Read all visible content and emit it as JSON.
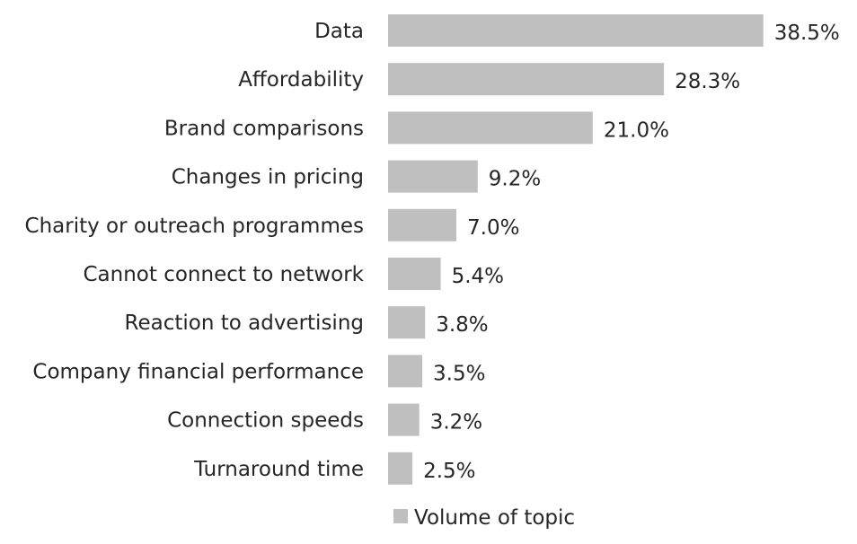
{
  "chart_data": {
    "type": "bar",
    "orientation": "horizontal",
    "categories": [
      "Data",
      "Affordability",
      "Brand comparisons",
      "Changes in pricing",
      "Charity or outreach programmes",
      "Cannot connect to network",
      "Reaction to advertising",
      "Company financial performance",
      "Connection speeds",
      "Turnaround time"
    ],
    "series": [
      {
        "name": "Volume of topic",
        "values": [
          38.5,
          28.3,
          21.0,
          9.2,
          7.0,
          5.4,
          3.8,
          3.5,
          3.2,
          2.5
        ],
        "labels": [
          "38.5%",
          "28.3%",
          "21.0%",
          "9.2%",
          "7.0%",
          "5.4%",
          "3.8%",
          "3.5%",
          "3.2%",
          "2.5%"
        ],
        "color": "#bfbfbf"
      }
    ],
    "xlim": [
      0,
      40
    ],
    "grid": false,
    "legend_position": "bottom"
  }
}
